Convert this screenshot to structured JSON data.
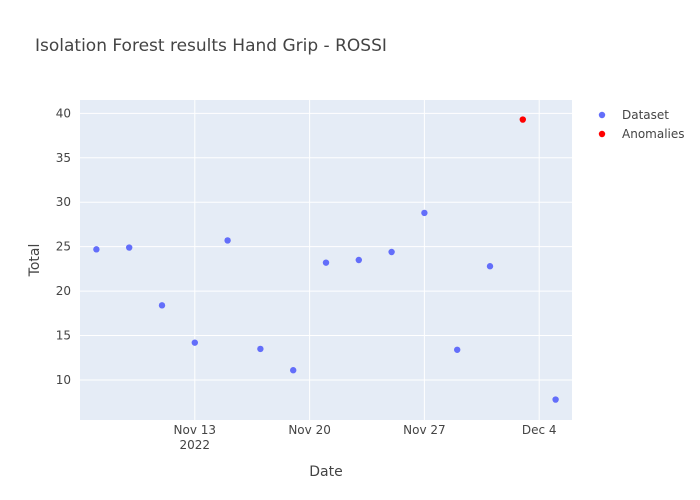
{
  "chart_data": {
    "type": "scatter",
    "title": "Isolation Forest results Hand Grip - ROSSI",
    "xlabel": "Date",
    "ylabel": "Total",
    "x_axis": {
      "type": "date",
      "range": [
        "2022-11-06",
        "2022-12-06"
      ],
      "ticks": [
        {
          "value": "2022-11-13",
          "label": "Nov 13",
          "sublabel": "2022"
        },
        {
          "value": "2022-11-20",
          "label": "Nov 20",
          "sublabel": ""
        },
        {
          "value": "2022-11-27",
          "label": "Nov 27",
          "sublabel": ""
        },
        {
          "value": "2022-12-04",
          "label": "Dec 4",
          "sublabel": ""
        }
      ]
    },
    "y_axis": {
      "range": [
        5.5,
        41.5
      ],
      "ticks": [
        10,
        15,
        20,
        25,
        30,
        35,
        40
      ]
    },
    "grid": true,
    "legend_position": "top-right",
    "series": [
      {
        "name": "Dataset",
        "color": "#636efa",
        "points": [
          {
            "x": "2022-11-07",
            "y": 24.7
          },
          {
            "x": "2022-11-09",
            "y": 24.9
          },
          {
            "x": "2022-11-11",
            "y": 18.4
          },
          {
            "x": "2022-11-13",
            "y": 14.2
          },
          {
            "x": "2022-11-15",
            "y": 25.7
          },
          {
            "x": "2022-11-17",
            "y": 13.5
          },
          {
            "x": "2022-11-19",
            "y": 11.1
          },
          {
            "x": "2022-11-21",
            "y": 23.2
          },
          {
            "x": "2022-11-23",
            "y": 23.5
          },
          {
            "x": "2022-11-25",
            "y": 24.4
          },
          {
            "x": "2022-11-27",
            "y": 28.8
          },
          {
            "x": "2022-11-29",
            "y": 13.4
          },
          {
            "x": "2022-12-01",
            "y": 22.8
          },
          {
            "x": "2022-12-05",
            "y": 7.8
          }
        ]
      },
      {
        "name": "Anomalies",
        "color": "#ff0000",
        "points": [
          {
            "x": "2022-12-03",
            "y": 39.3
          }
        ]
      }
    ]
  },
  "colors": {
    "plot_background": "#e5ecf6",
    "gridline": "#ffffff",
    "text": "#444444"
  }
}
